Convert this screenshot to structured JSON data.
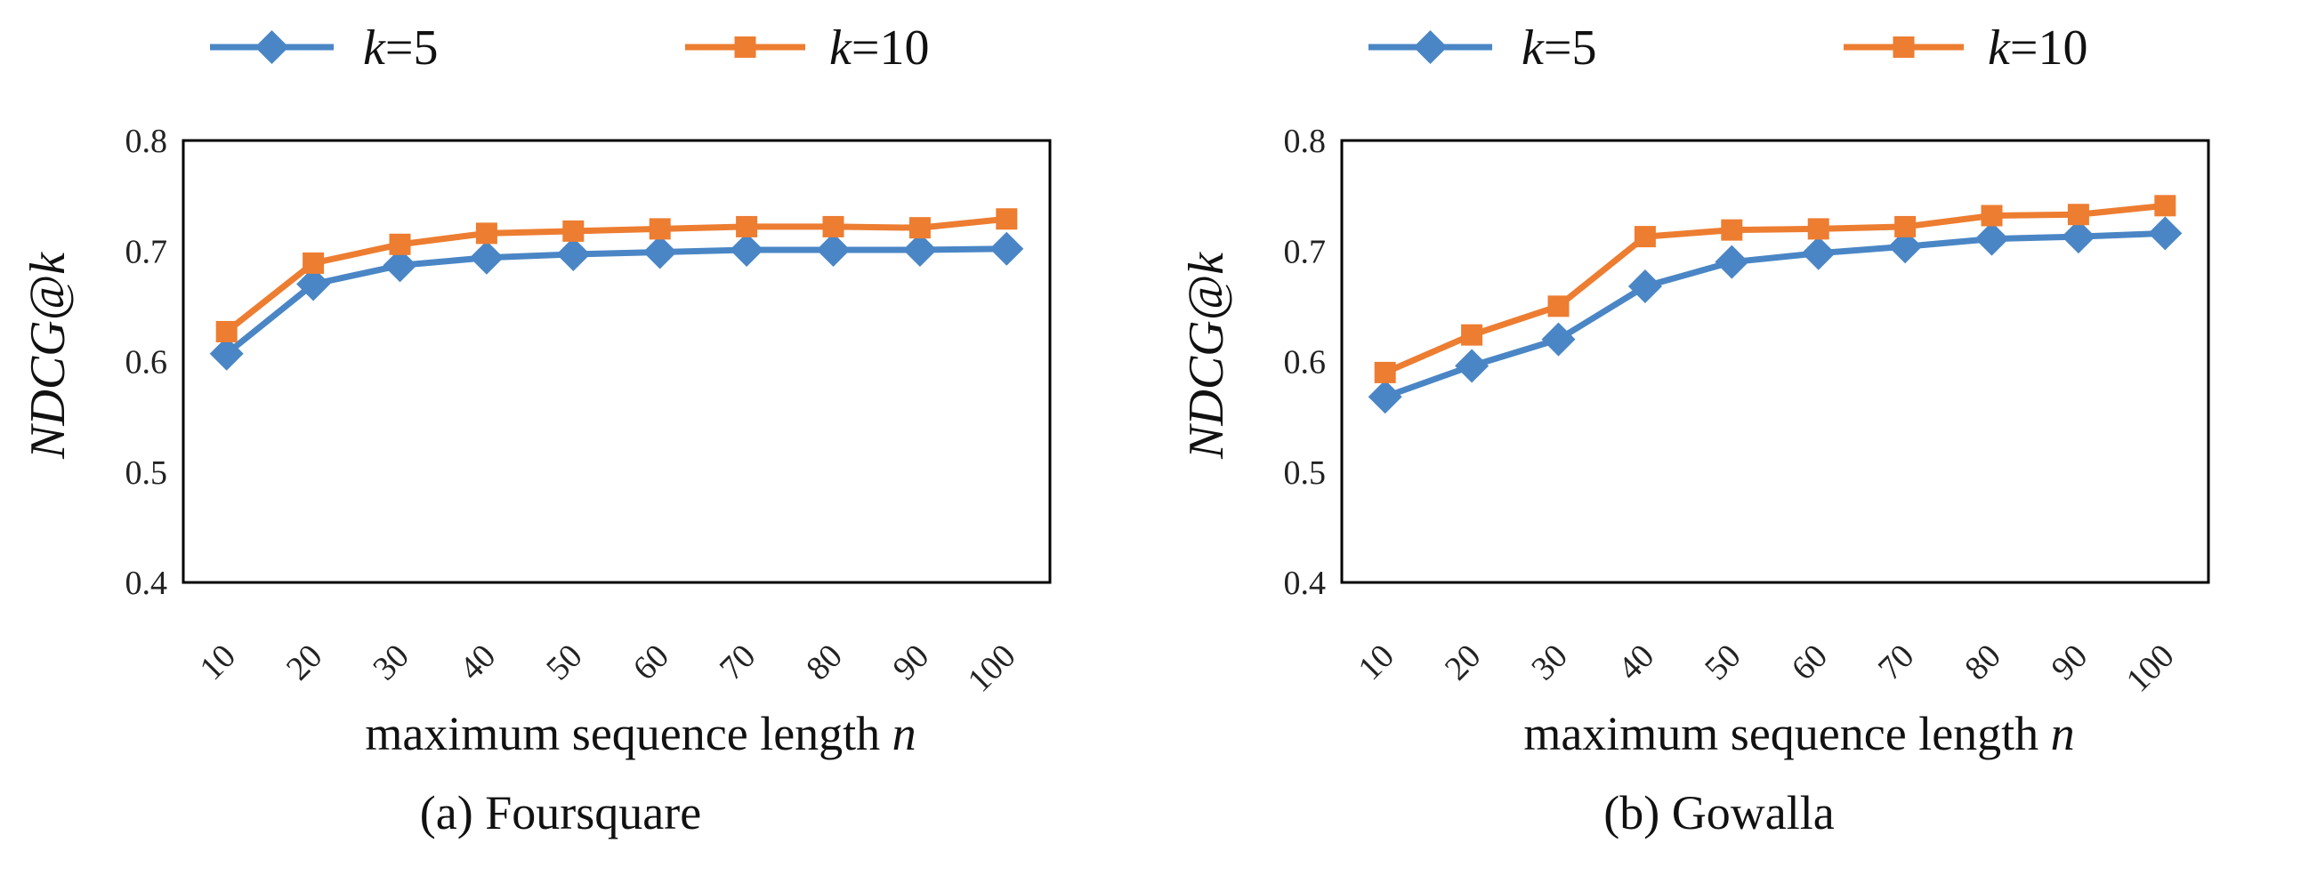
{
  "chart_data": [
    {
      "type": "line",
      "caption": "(a) Foursquare",
      "xlabel": "maximum sequence length ",
      "xlabel_var": "n",
      "ylabel": "NDCG@k",
      "ylim": [
        0.4,
        0.8
      ],
      "yticks": [
        "0.4",
        "0.5",
        "0.6",
        "0.7",
        "0.8"
      ],
      "ytick_values": [
        0.4,
        0.5,
        0.6,
        0.7,
        0.8
      ],
      "categories": [
        "10",
        "20",
        "30",
        "40",
        "50",
        "60",
        "70",
        "80",
        "90",
        "100"
      ],
      "series": [
        {
          "name": "k=5",
          "var": "k",
          "suffix": "=5",
          "color": "#4a86c5",
          "marker": "diamond",
          "values": [
            0.607,
            0.67,
            0.687,
            0.694,
            0.697,
            0.699,
            0.701,
            0.701,
            0.701,
            0.702
          ]
        },
        {
          "name": "k=10",
          "var": "k",
          "suffix": "=10",
          "color": "#ed7d31",
          "marker": "square",
          "values": [
            0.627,
            0.689,
            0.706,
            0.716,
            0.718,
            0.72,
            0.722,
            0.722,
            0.721,
            0.729
          ]
        }
      ]
    },
    {
      "type": "line",
      "caption": "(b) Gowalla",
      "xlabel": "maximum sequence length ",
      "xlabel_var": "n",
      "ylabel": "NDCG@k",
      "ylim": [
        0.4,
        0.8
      ],
      "yticks": [
        "0.4",
        "0.5",
        "0.6",
        "0.7",
        "0.8"
      ],
      "ytick_values": [
        0.4,
        0.5,
        0.6,
        0.7,
        0.8
      ],
      "categories": [
        "10",
        "20",
        "30",
        "40",
        "50",
        "60",
        "70",
        "80",
        "90",
        "100"
      ],
      "series": [
        {
          "name": "k=5",
          "var": "k",
          "suffix": "=5",
          "color": "#4a86c5",
          "marker": "diamond",
          "values": [
            0.568,
            0.596,
            0.62,
            0.668,
            0.69,
            0.698,
            0.704,
            0.711,
            0.713,
            0.716
          ]
        },
        {
          "name": "k=10",
          "var": "k",
          "suffix": "=10",
          "color": "#ed7d31",
          "marker": "square",
          "values": [
            0.59,
            0.624,
            0.65,
            0.713,
            0.719,
            0.72,
            0.722,
            0.732,
            0.733,
            0.741
          ]
        }
      ]
    }
  ]
}
